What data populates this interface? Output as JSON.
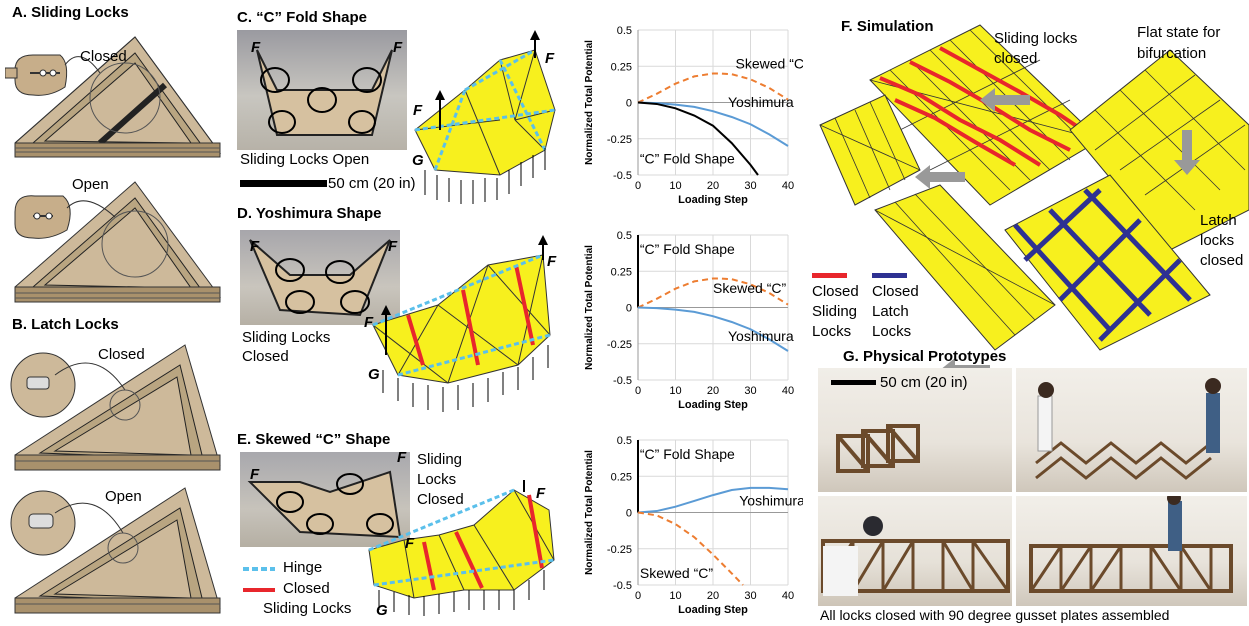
{
  "panelA": {
    "title": "A. Sliding Locks",
    "closed": "Closed",
    "open": "Open"
  },
  "panelB": {
    "title": "B. Latch Locks",
    "closed": "Closed",
    "open": "Open"
  },
  "panelC": {
    "title": "C. “C” Fold Shape",
    "photo_caption": "Sliding Locks Open",
    "scalebar": "50 cm (20 in)",
    "force": "F",
    "ground": "G"
  },
  "panelD": {
    "title": "D. Yoshimura Shape",
    "caption_line1": "Sliding Locks",
    "caption_line2": "Closed",
    "force": "F",
    "ground": "G"
  },
  "panelE": {
    "title": "E. Skewed “C” Shape",
    "caption_line1": "Sliding",
    "caption_line2": "Locks",
    "caption_line3": "Closed",
    "force": "F",
    "ground": "G",
    "legend": {
      "hinge": "Hinge",
      "closed_line1": "Closed",
      "closed_line2": "Sliding Locks"
    }
  },
  "panelF": {
    "title": "F. Simulation",
    "sliding_line1": "Sliding locks",
    "sliding_line2": "closed",
    "flat_line1": "Flat state for",
    "flat_line2": "bifurcation",
    "latch_line1": "Latch",
    "latch_line2": "locks",
    "latch_line3": "closed",
    "legend": {
      "red_line1": "Closed",
      "red_line2": "Sliding",
      "red_line3": "Locks",
      "blue_line1": "Closed",
      "blue_line2": "Latch",
      "blue_line3": "Locks"
    }
  },
  "panelG": {
    "title": "G. Physical Prototypes",
    "scalebar": "50 cm (20 in)",
    "caption": "All locks closed with 90 degree gusset plates assembled"
  },
  "colors": {
    "yoshimura": "#5b9bd5",
    "skewed": "#ed7d31",
    "cfold": "#000000",
    "red_lock": "#e8262c",
    "blue_lock": "#2e3192",
    "panel_yellow": "#f7f01e"
  },
  "chart_data": [
    {
      "type": "line",
      "xlabel": "Loading Step",
      "ylabel": "Normalized Total Potential",
      "xlim": [
        0,
        40
      ],
      "ylim": [
        -0.5,
        0.5
      ],
      "xticks": [
        "0",
        "10",
        "20",
        "30",
        "40"
      ],
      "yticks": [
        "0.5",
        "0.25",
        "0",
        "-0.25",
        "-0.5"
      ],
      "series": [
        {
          "name": "Skewed “C”",
          "style": "dashed",
          "color": "#ed7d31",
          "x": [
            0,
            5,
            10,
            15,
            20,
            22,
            25,
            30,
            35,
            40
          ],
          "y": [
            0,
            0.06,
            0.13,
            0.18,
            0.2,
            0.2,
            0.195,
            0.16,
            0.1,
            0.02
          ]
        },
        {
          "name": "Yoshimura",
          "style": "solid",
          "color": "#5b9bd5",
          "x": [
            0,
            5,
            10,
            15,
            20,
            25,
            30,
            35,
            40
          ],
          "y": [
            0,
            -0.004,
            -0.015,
            -0.03,
            -0.06,
            -0.1,
            -0.15,
            -0.22,
            -0.3
          ]
        },
        {
          "name": "“C” Fold Shape",
          "style": "solid",
          "color": "#000000",
          "x": [
            0,
            5,
            10,
            15,
            20,
            25,
            30,
            32
          ],
          "y": [
            0,
            -0.01,
            -0.04,
            -0.09,
            -0.16,
            -0.28,
            -0.43,
            -0.5
          ]
        }
      ]
    },
    {
      "type": "line",
      "xlabel": "Loading Step",
      "ylabel": "Normalized Total Potential",
      "xlim": [
        0,
        40
      ],
      "ylim": [
        -0.5,
        0.5
      ],
      "xticks": [
        "0",
        "10",
        "20",
        "30",
        "40"
      ],
      "yticks": [
        "0.5",
        "0.25",
        "0",
        "-0.25",
        "-0.5"
      ],
      "series": [
        {
          "name": "“C” Fold Shape",
          "style": "solid",
          "color": "#000000",
          "x": [
            0,
            0
          ],
          "y": [
            0,
            0.5
          ]
        },
        {
          "name": "Skewed “C”",
          "style": "dashed",
          "color": "#ed7d31",
          "x": [
            0,
            5,
            10,
            15,
            20,
            22,
            25,
            30,
            35,
            40
          ],
          "y": [
            0,
            0.06,
            0.13,
            0.18,
            0.2,
            0.2,
            0.195,
            0.16,
            0.1,
            0.02
          ]
        },
        {
          "name": "Yoshimura",
          "style": "solid",
          "color": "#5b9bd5",
          "x": [
            0,
            5,
            10,
            15,
            20,
            25,
            30,
            35,
            40
          ],
          "y": [
            0,
            -0.004,
            -0.015,
            -0.03,
            -0.06,
            -0.1,
            -0.15,
            -0.22,
            -0.3
          ]
        }
      ]
    },
    {
      "type": "line",
      "xlabel": "Loading Step",
      "ylabel": "Normalized Total Potential",
      "xlim": [
        0,
        40
      ],
      "ylim": [
        -0.5,
        0.5
      ],
      "xticks": [
        "0",
        "10",
        "20",
        "30",
        "40"
      ],
      "yticks": [
        "0.5",
        "0.25",
        "0",
        "-0.25",
        "-0.5"
      ],
      "series": [
        {
          "name": "“C” Fold Shape",
          "style": "solid",
          "color": "#000000",
          "x": [
            0,
            0
          ],
          "y": [
            0,
            0.5
          ]
        },
        {
          "name": "Yoshimura",
          "style": "solid",
          "color": "#5b9bd5",
          "x": [
            0,
            5,
            10,
            15,
            20,
            25,
            30,
            35,
            40
          ],
          "y": [
            0,
            0.01,
            0.04,
            0.08,
            0.12,
            0.155,
            0.17,
            0.17,
            0.16
          ]
        },
        {
          "name": "Skewed “C”",
          "style": "dashed",
          "color": "#ed7d31",
          "x": [
            0,
            5,
            10,
            15,
            20,
            25,
            28
          ],
          "y": [
            0,
            -0.02,
            -0.08,
            -0.17,
            -0.29,
            -0.42,
            -0.5
          ]
        }
      ]
    }
  ]
}
